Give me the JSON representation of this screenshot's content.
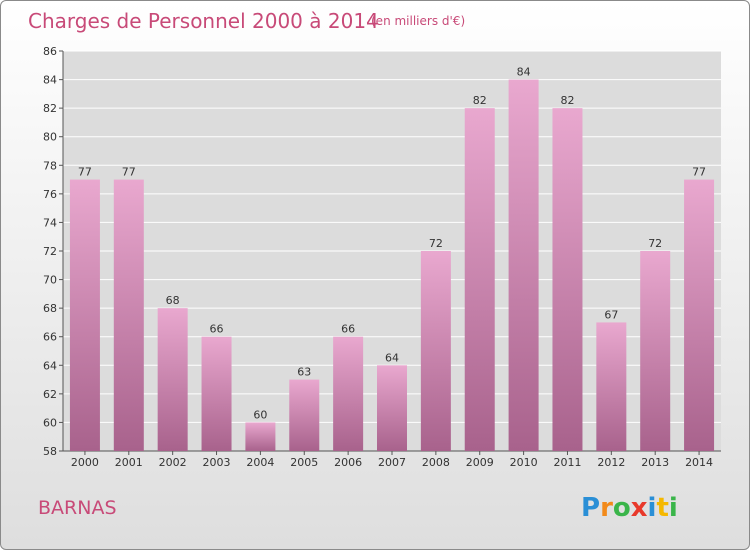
{
  "chart_data": {
    "type": "bar",
    "title": "Charges de Personnel 2000 à 2014",
    "subtitle": "(en milliers d'€)",
    "categories": [
      "2000",
      "2001",
      "2002",
      "2003",
      "2004",
      "2005",
      "2006",
      "2007",
      "2008",
      "2009",
      "2010",
      "2011",
      "2012",
      "2013",
      "2014"
    ],
    "values": [
      77,
      77,
      68,
      66,
      60,
      63,
      66,
      64,
      72,
      82,
      84,
      82,
      67,
      72,
      77
    ],
    "ylim": [
      58,
      86
    ],
    "yticks": [
      58,
      60,
      62,
      64,
      66,
      68,
      70,
      72,
      74,
      76,
      78,
      80,
      82,
      84,
      86
    ],
    "grid": true,
    "bar_color_top": "#e9a8cf",
    "bar_color_bottom": "#a8628c",
    "plot_background": "#dcdcdc"
  },
  "commune": "BARNAS",
  "logo": {
    "text": "Proxiti",
    "letters": [
      {
        "ch": "P",
        "color": "#2a8fd6"
      },
      {
        "ch": "r",
        "color": "#f28a1a"
      },
      {
        "ch": "o",
        "color": "#3ab54a"
      },
      {
        "ch": "x",
        "color": "#e8392b"
      },
      {
        "ch": "i",
        "color": "#2a8fd6"
      },
      {
        "ch": "t",
        "color": "#f5b800"
      },
      {
        "ch": "i",
        "color": "#3ab54a"
      }
    ]
  }
}
